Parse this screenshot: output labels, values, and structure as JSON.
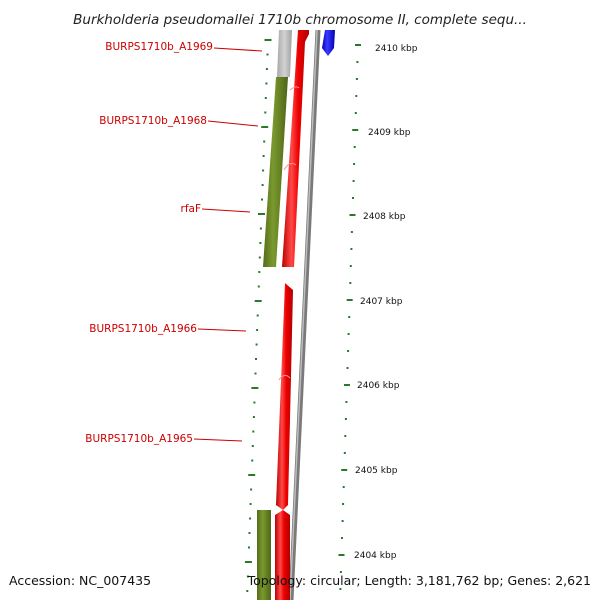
{
  "title": "Burkholderia pseudomallei 1710b chromosome II, complete sequ...",
  "gene_labels": [
    "BURPS1710b_A1969",
    "BURPS1710b_A1968",
    "rfaF",
    "BURPS1710b_A1966",
    "BURPS1710b_A1965"
  ],
  "scale_ticks": [
    "2410 kbp",
    "2409 kbp",
    "2408 kbp",
    "2407 kbp",
    "2406 kbp",
    "2405 kbp",
    "2404 kbp"
  ],
  "footer": {
    "accession": "Accession: NC_007435",
    "topology": "Topology: circular; Length: 3,181,762 bp; Genes: 2,621"
  },
  "colors": {
    "cds": "#ee0000",
    "gene": "#6b8e23",
    "other": "#bbbbbb",
    "reverse_feature": "#0000ee",
    "backbone": "#888888",
    "label": "#cc0000",
    "ruler": "#2a7a2a"
  }
}
